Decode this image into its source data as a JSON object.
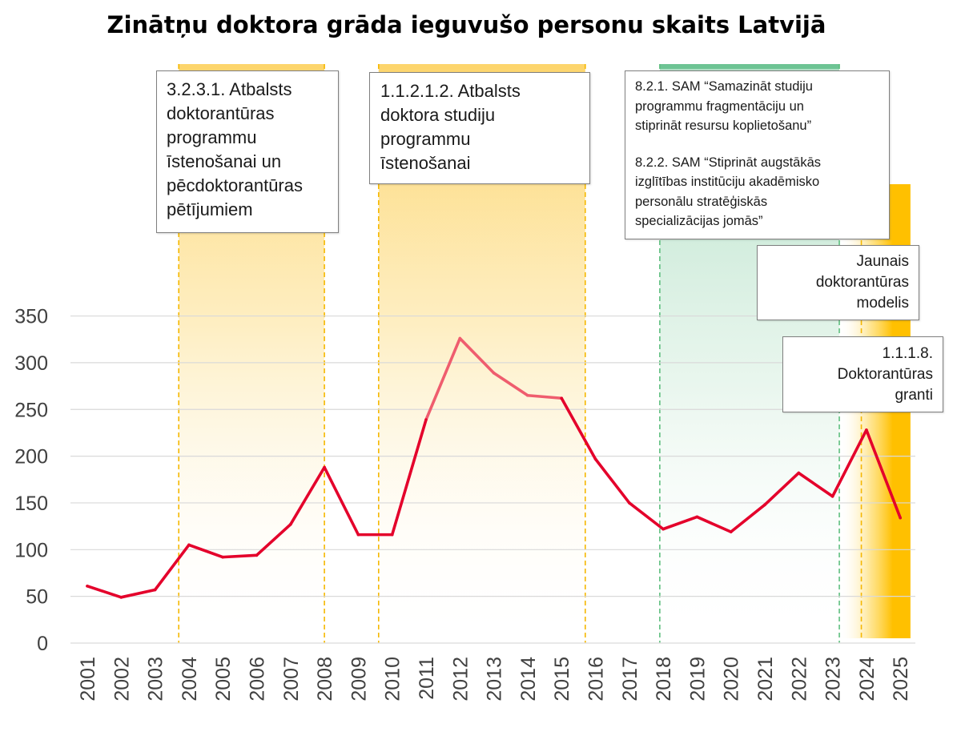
{
  "title": "Zinātņu doktora grāda ieguvušo personu skaits Latvijā",
  "colors": {
    "line": "#e4002b",
    "line_highlight": "#ef5d6e",
    "yellow_band": "#fdd56c",
    "yellow_strong": "#ffc000",
    "yellow_dash": "#f5b800",
    "green_band": "#6dc494",
    "green_dash": "#5fbf7f",
    "grid": "#d9d9d9",
    "axis_text": "#404040"
  },
  "chart_data": {
    "type": "line",
    "title": "Zinātņu doktora grāda ieguvušo personu skaits Latvijā",
    "xlabel": "",
    "ylabel": "",
    "ylim": [
      0,
      350
    ],
    "yticks": [
      0,
      50,
      100,
      150,
      200,
      250,
      300,
      350
    ],
    "categories": [
      "2001",
      "2002",
      "2003",
      "2004",
      "2005",
      "2006",
      "2007",
      "2008",
      "2009",
      "2010",
      "2011",
      "2012",
      "2013",
      "2014",
      "2015",
      "2016",
      "2017",
      "2018",
      "2019",
      "2020",
      "2021",
      "2022",
      "2023",
      "2024",
      "2025"
    ],
    "series": [
      {
        "values": [
          61,
          49,
          57,
          105,
          92,
          94,
          127,
          188,
          116,
          116,
          239,
          326,
          289,
          265,
          262,
          197,
          150,
          122,
          135,
          119,
          148,
          182,
          157,
          228,
          134
        ],
        "highlight_range": [
          "2011",
          "2015"
        ]
      }
    ],
    "grid": true,
    "legend": "none",
    "periods": [
      {
        "id": "p1",
        "label": "3.2.3.1. Atbalsts doktorantūras programmu īstenošanai un pēcdoktorantūras pētījumiem",
        "start": 2003.7,
        "end": 2008.0,
        "color": "yellow"
      },
      {
        "id": "p2",
        "label": "1.1.2.1.2. Atbalsts doktora studiju programmu īstenošanai",
        "start": 2009.6,
        "end": 2015.7,
        "color": "yellow"
      },
      {
        "id": "p3",
        "label": "8.2.1. SAM “Samazināt studiju programmu fragmentāciju un stiprināt resursu koplietošanu” / 8.2.2. SAM “Stiprināt augstākās izglītības institūciju akadēmisko personālu stratēģiskās specializācijas jomās”",
        "start": 2017.9,
        "end": 2023.2,
        "color": "green"
      },
      {
        "id": "p4",
        "label": "Jaunais doktorantūras modelis",
        "start": 2023.2,
        "end": 2025.3,
        "color": "yellow-strong"
      },
      {
        "id": "p5",
        "label": "1.1.1.8. Doktorantūras granti",
        "start": 2023.85,
        "end": 2025.3,
        "color": "yellow-strong"
      }
    ]
  },
  "annotations": [
    {
      "lines": [
        "3.2.3.1. Atbalsts",
        "doktorantūras",
        "programmu",
        "īstenošanai un",
        "pēcdoktorantūras",
        "pētījumiem"
      ]
    },
    {
      "lines": [
        "1.1.2.1.2. Atbalsts",
        "doktora studiju",
        "programmu",
        "īstenošanai"
      ]
    },
    {
      "lines": [
        "8.2.1. SAM “Samazināt studiju",
        "programmu fragmentāciju un",
        "stiprināt resursu koplietošanu”"
      ],
      "lines2": [
        "8.2.2. SAM “Stiprināt augstākās",
        "izglītības institūciju akadēmisko",
        "personālu stratēģiskās",
        "specializācijas jomās”"
      ]
    },
    {
      "lines": [
        "Jaunais",
        "doktorantūras",
        "modelis"
      ]
    },
    {
      "lines": [
        "1.1.1.8.",
        "Doktorantūras",
        "granti"
      ]
    }
  ]
}
